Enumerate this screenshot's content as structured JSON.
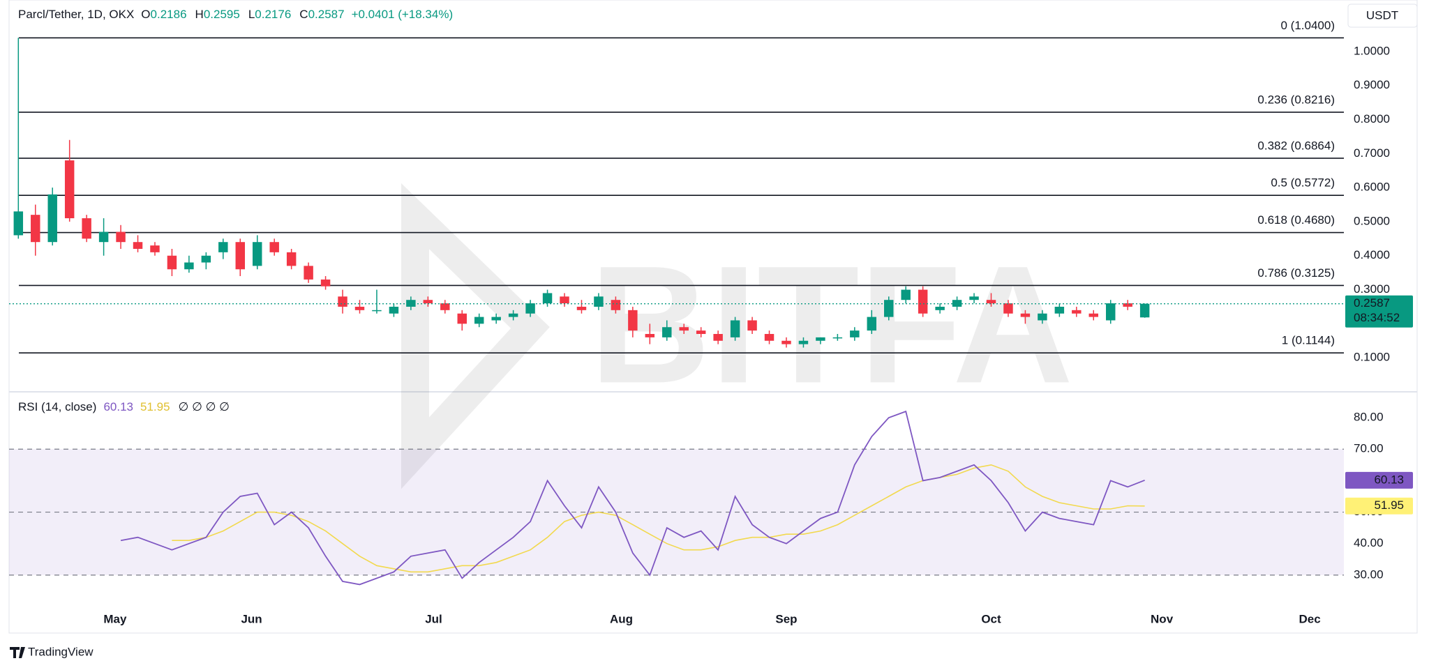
{
  "chart_data": [
    {
      "type": "candlestick",
      "title": "Parcl/Tether, 1D, OKX",
      "ohlc_labels": [
        "O",
        "H",
        "L",
        "C"
      ],
      "change": "+0.0401 (+18.34%)",
      "currency": "USDT",
      "countdown": "08:34:52",
      "up_color": "#089981",
      "down_color": "#f23645",
      "x": [
        0,
        3,
        6,
        9,
        12,
        15,
        18,
        21,
        24,
        27,
        30,
        33,
        36,
        39,
        42,
        45,
        48,
        51,
        54,
        57,
        60,
        63,
        66,
        69,
        72,
        75,
        78,
        81,
        84,
        87,
        90,
        93,
        96,
        99,
        102,
        105,
        108,
        111,
        114,
        117,
        120,
        123,
        126,
        129,
        132,
        135,
        138,
        141,
        144,
        147,
        150,
        153,
        156,
        159,
        162,
        165,
        168,
        171,
        174,
        177,
        180,
        183,
        186,
        189,
        192,
        195,
        198
      ],
      "open": [
        0.46,
        0.52,
        0.44,
        0.68,
        0.51,
        0.44,
        0.47,
        0.44,
        0.43,
        0.4,
        0.36,
        0.38,
        0.41,
        0.44,
        0.37,
        0.44,
        0.41,
        0.37,
        0.33,
        0.28,
        0.25,
        0.24,
        0.23,
        0.25,
        0.27,
        0.26,
        0.23,
        0.2,
        0.21,
        0.22,
        0.23,
        0.26,
        0.28,
        0.25,
        0.25,
        0.27,
        0.24,
        0.17,
        0.16,
        0.19,
        0.18,
        0.17,
        0.16,
        0.21,
        0.17,
        0.15,
        0.14,
        0.15,
        0.16,
        0.16,
        0.18,
        0.22,
        0.27,
        0.3,
        0.24,
        0.25,
        0.27,
        0.27,
        0.26,
        0.23,
        0.21,
        0.23,
        0.24,
        0.23,
        0.21,
        0.26,
        0.2186
      ],
      "high": [
        1.04,
        0.55,
        0.6,
        0.74,
        0.52,
        0.51,
        0.49,
        0.46,
        0.44,
        0.42,
        0.4,
        0.41,
        0.45,
        0.45,
        0.46,
        0.45,
        0.42,
        0.38,
        0.34,
        0.3,
        0.27,
        0.3,
        0.26,
        0.28,
        0.28,
        0.27,
        0.24,
        0.23,
        0.23,
        0.24,
        0.27,
        0.3,
        0.29,
        0.27,
        0.29,
        0.28,
        0.25,
        0.2,
        0.21,
        0.2,
        0.19,
        0.18,
        0.22,
        0.22,
        0.18,
        0.16,
        0.16,
        0.16,
        0.17,
        0.19,
        0.24,
        0.28,
        0.31,
        0.31,
        0.26,
        0.28,
        0.29,
        0.29,
        0.27,
        0.24,
        0.24,
        0.26,
        0.25,
        0.24,
        0.27,
        0.27,
        0.2595
      ],
      "low": [
        0.45,
        0.4,
        0.43,
        0.5,
        0.44,
        0.4,
        0.42,
        0.41,
        0.4,
        0.34,
        0.35,
        0.36,
        0.39,
        0.34,
        0.36,
        0.4,
        0.36,
        0.32,
        0.3,
        0.23,
        0.23,
        0.23,
        0.22,
        0.24,
        0.25,
        0.23,
        0.18,
        0.19,
        0.2,
        0.21,
        0.22,
        0.25,
        0.25,
        0.23,
        0.24,
        0.23,
        0.16,
        0.14,
        0.15,
        0.17,
        0.16,
        0.14,
        0.15,
        0.17,
        0.14,
        0.13,
        0.13,
        0.14,
        0.15,
        0.15,
        0.17,
        0.21,
        0.26,
        0.22,
        0.23,
        0.24,
        0.26,
        0.25,
        0.22,
        0.2,
        0.2,
        0.22,
        0.22,
        0.21,
        0.2,
        0.24,
        0.2176
      ],
      "close": [
        0.53,
        0.44,
        0.58,
        0.51,
        0.45,
        0.47,
        0.44,
        0.42,
        0.41,
        0.36,
        0.38,
        0.4,
        0.44,
        0.36,
        0.44,
        0.41,
        0.37,
        0.33,
        0.31,
        0.25,
        0.24,
        0.24,
        0.25,
        0.27,
        0.26,
        0.24,
        0.2,
        0.22,
        0.22,
        0.23,
        0.26,
        0.29,
        0.26,
        0.24,
        0.28,
        0.24,
        0.18,
        0.16,
        0.19,
        0.18,
        0.17,
        0.15,
        0.21,
        0.18,
        0.15,
        0.14,
        0.15,
        0.16,
        0.16,
        0.18,
        0.22,
        0.27,
        0.3,
        0.23,
        0.25,
        0.27,
        0.28,
        0.26,
        0.23,
        0.22,
        0.23,
        0.25,
        0.23,
        0.22,
        0.26,
        0.25,
        0.2587
      ],
      "xlim": [
        -2,
        233
      ],
      "xticks": [
        {
          "value": 17,
          "label": "May"
        },
        {
          "value": 41,
          "label": "Jun"
        },
        {
          "value": 73,
          "label": "Jul"
        },
        {
          "value": 106,
          "label": "Aug"
        },
        {
          "value": 135,
          "label": "Sep"
        },
        {
          "value": 171,
          "label": "Oct"
        },
        {
          "value": 201,
          "label": "Nov"
        },
        {
          "value": 227,
          "label": "Dec"
        }
      ],
      "ylim": [
        0,
        1.1
      ],
      "yticks": [
        {
          "value": 1,
          "label": "1.0000"
        },
        {
          "value": 0.9,
          "label": "0.9000"
        },
        {
          "value": 0.8,
          "label": "0.8000"
        },
        {
          "value": 0.7,
          "label": "0.7000"
        },
        {
          "value": 0.6,
          "label": "0.6000"
        },
        {
          "value": 0.5,
          "label": "0.5000"
        },
        {
          "value": 0.4,
          "label": "0.4000"
        },
        {
          "value": 0.3,
          "label": "0.3000"
        },
        {
          "value": 0.2,
          "label": "0.2000"
        },
        {
          "value": 0.1,
          "label": "0.1000"
        }
      ],
      "fib_levels": [
        {
          "value": 1.04,
          "label": "0 (1.0400)"
        },
        {
          "value": 0.8216,
          "label": "0.236 (0.8216)"
        },
        {
          "value": 0.6864,
          "label": "0.382 (0.6864)"
        },
        {
          "value": 0.5772,
          "label": "0.5 (0.5772)"
        },
        {
          "value": 0.468,
          "label": "0.618 (0.4680)"
        },
        {
          "value": 0.3125,
          "label": "0.786 (0.3125)"
        },
        {
          "value": 0.1144,
          "label": "1 (0.1144)"
        }
      ]
    },
    {
      "type": "line",
      "title": "RSI (14, close)",
      "flags": "∅ ∅ ∅ ∅",
      "series": [
        {
          "color": "#7e57c2",
          "values": [
            null,
            null,
            null,
            null,
            null,
            null,
            41,
            42,
            40,
            38,
            40,
            42,
            50,
            55,
            56,
            46,
            50,
            45,
            36,
            28,
            27,
            29,
            31,
            36,
            37,
            38,
            29,
            34,
            38,
            42,
            47,
            60,
            52,
            45,
            58,
            50,
            37,
            30,
            45,
            42,
            44,
            38,
            55,
            46,
            42,
            40,
            44,
            48,
            50,
            65,
            74,
            80,
            82,
            60,
            61,
            63,
            65,
            60,
            53,
            44,
            50,
            48,
            47,
            46,
            60,
            58,
            60.13
          ]
        },
        {
          "color": "#f2d94e",
          "values": [
            null,
            null,
            null,
            null,
            null,
            null,
            null,
            null,
            null,
            41,
            41,
            42,
            44,
            47,
            50,
            50,
            49,
            47,
            44,
            40,
            36,
            33,
            32,
            31,
            31,
            32,
            33,
            33,
            34,
            36,
            38,
            42,
            47,
            49,
            50,
            49,
            46,
            43,
            40,
            38,
            38,
            39,
            41,
            42,
            42,
            43,
            43,
            44,
            46,
            49,
            52,
            55,
            58,
            60,
            61,
            62,
            64,
            65,
            63,
            58,
            55,
            53,
            52,
            51,
            51,
            52,
            51.95
          ]
        }
      ],
      "ylim": [
        20,
        88
      ],
      "yticks": [
        {
          "value": 80,
          "label": "80.00"
        },
        {
          "value": 70,
          "label": "70.00"
        },
        {
          "value": 60,
          "label": "60.00"
        },
        {
          "value": 50,
          "label": "50.00"
        },
        {
          "value": 40,
          "label": "40.00"
        },
        {
          "value": 30,
          "label": "30.00"
        }
      ],
      "levels": [
        70,
        50,
        30
      ],
      "band_color": "#7e57c2"
    }
  ],
  "watermark": "BITFA",
  "branding": "TradingView"
}
